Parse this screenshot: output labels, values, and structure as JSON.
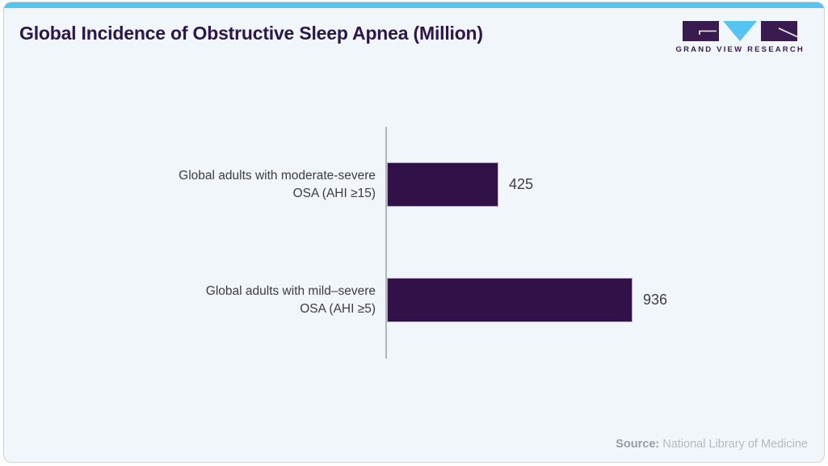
{
  "header": {
    "title": "Global Incidence of Obstructive Sleep Apnea (Million)",
    "logo_text": "GRAND VIEW RESEARCH"
  },
  "chart_data": {
    "type": "bar",
    "orientation": "horizontal",
    "title": "Global Incidence of Obstructive Sleep Apnea (Million)",
    "categories": [
      "Global adults with moderate-severe OSA (AHI ≥15)",
      "Global adults with mild–severe OSA (AHI ≥5)"
    ],
    "values": [
      425,
      936
    ],
    "xlabel": "",
    "ylabel": "",
    "xlim": [
      0,
      1000
    ],
    "grid": false,
    "legend": false,
    "value_labels": [
      "425",
      "936"
    ],
    "value_label_position": "right-of-bar"
  },
  "rows": [
    {
      "label_line1": "Global adults with moderate-severe",
      "label_line2": "OSA (AHI ≥15)"
    },
    {
      "label_line1": "Global adults with mild–severe",
      "label_line2": "OSA (AHI ≥5)"
    }
  ],
  "footer": {
    "source_label": "Source:",
    "source_text": "National Library of Medicine"
  },
  "colors": {
    "accent_bar": "#57c3f0",
    "card_background": "#f1f6fa",
    "bar_fill": "#321048",
    "bar_edge": "#b7a9c6",
    "title_text": "#2c164c",
    "axis_line": "#b2b5b9",
    "label_text": "#3c3c44",
    "source_label_text": "#959da5",
    "source_text": "#b3bac0",
    "logo_purple": "#3a1b50"
  }
}
